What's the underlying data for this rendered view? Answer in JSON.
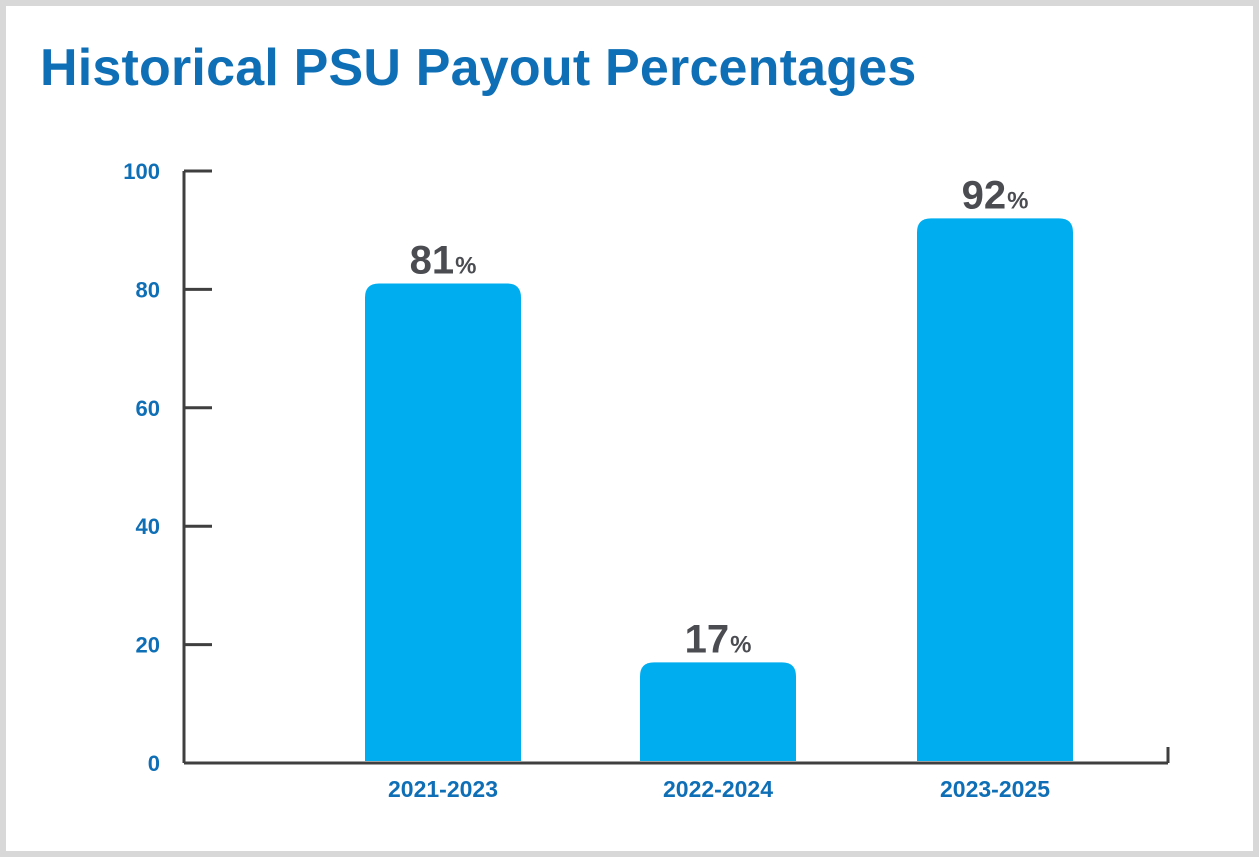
{
  "chart_data": {
    "type": "bar",
    "title": "Historical PSU Payout Percentages",
    "xlabel": "",
    "ylabel": "",
    "categories": [
      "2021-2023",
      "2022-2024",
      "2023-2025"
    ],
    "values": [
      81,
      17,
      92
    ],
    "value_labels": [
      "81",
      "17",
      "92"
    ],
    "value_unit": "%",
    "ylim": [
      0,
      100
    ],
    "yticks": [
      0,
      20,
      40,
      60,
      80,
      100
    ],
    "ytick_labels": [
      "0",
      "20",
      "40",
      "60",
      "80",
      "100"
    ],
    "grid": false,
    "legend": "none",
    "colors": {
      "bar": "#00aeef",
      "title": "#0f6fb6",
      "axis_labels": "#0f6fb6",
      "value_labels": "#4a4c52",
      "axis_line": "#3f3f3f",
      "frame": "#d8d8d8"
    }
  }
}
